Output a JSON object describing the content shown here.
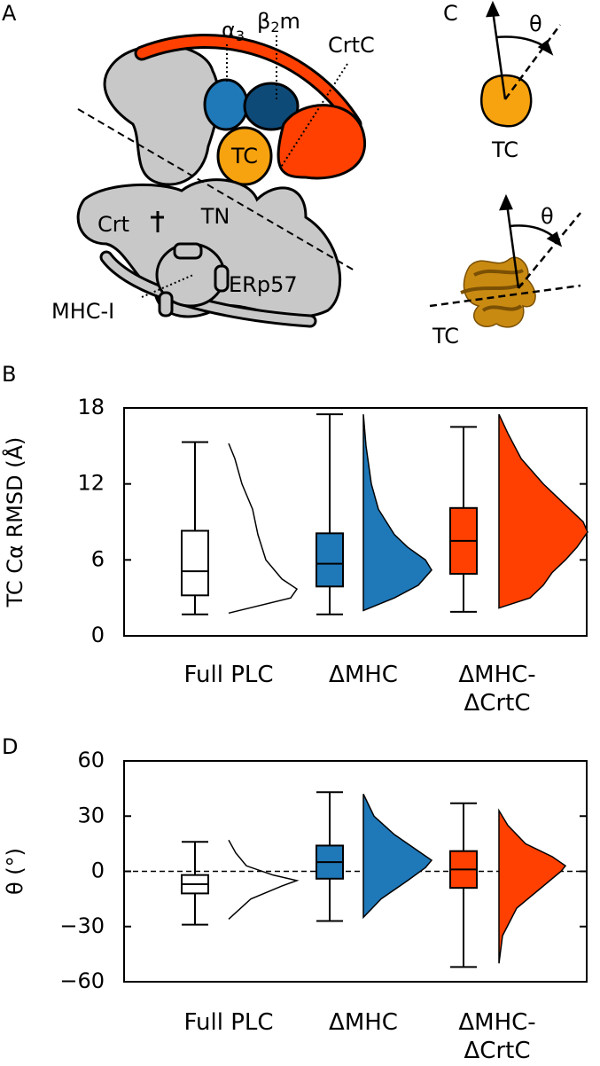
{
  "panel_labels": [
    "A",
    "B",
    "C",
    "D"
  ],
  "diagram_a": {
    "alpha3": {
      "text": "α",
      "sub": "3"
    },
    "b2m": {
      "text": "β",
      "sub": "2",
      "rest": "m"
    },
    "crtc": "CrtC",
    "tc": "TC",
    "crt": "Crt",
    "tn": "TN",
    "erp57": "ERp57",
    "mhc": "MHC-I"
  },
  "diagram_c": {
    "theta_top": "θ",
    "tc_top": "TC",
    "theta_bottom": "θ",
    "tc_bottom": "TC"
  },
  "chart_data": [
    {
      "type": "box",
      "ylabel": "TC Cα RMSD (Å)",
      "categories": [
        "Full PLC",
        "ΔMHC",
        "ΔMHC-ΔCrtC"
      ],
      "ylim": [
        0,
        18
      ],
      "yticks": [
        0,
        6,
        12,
        18
      ],
      "boxes": [
        {
          "color": "#ffffff",
          "density_filled": false,
          "whisker_low": 1.7,
          "q1": 3.2,
          "median": 5.1,
          "q3": 8.3,
          "whisker_high": 15.3,
          "density_y": [
            1.8,
            3.0,
            3.7,
            4.5,
            6,
            8,
            10,
            12,
            14,
            15.2
          ],
          "density": [
            0,
            0.7,
            0.77,
            0.6,
            0.42,
            0.33,
            0.27,
            0.15,
            0.07,
            0
          ]
        },
        {
          "color": "#1f78b8",
          "density_filled": true,
          "whisker_low": 1.7,
          "q1": 3.9,
          "median": 5.7,
          "q3": 8.1,
          "whisker_high": 17.5,
          "density_y": [
            2,
            3,
            4,
            5.2,
            6,
            7,
            8,
            10,
            12,
            15,
            17.5
          ],
          "density": [
            0,
            0.35,
            0.62,
            0.77,
            0.7,
            0.5,
            0.35,
            0.17,
            0.09,
            0.03,
            0
          ]
        },
        {
          "color": "#ff4000",
          "density_filled": true,
          "whisker_low": 1.9,
          "q1": 4.9,
          "median": 7.5,
          "q3": 10.1,
          "whisker_high": 16.5,
          "density_y": [
            2.2,
            3,
            4,
            5,
            6,
            7,
            8.2,
            9,
            10,
            12,
            14,
            16,
            17.5
          ],
          "density": [
            0,
            0.35,
            0.5,
            0.6,
            0.75,
            0.88,
            1,
            0.95,
            0.8,
            0.5,
            0.25,
            0.1,
            0
          ]
        }
      ]
    },
    {
      "type": "box",
      "ylabel": "θ (°)",
      "categories": [
        "Full PLC",
        "ΔMHC",
        "ΔMHC-ΔCrtC"
      ],
      "ylim": [
        -60,
        60
      ],
      "yticks": [
        {
          "value": -60,
          "label": "−60"
        },
        {
          "value": -30,
          "label": "−30"
        },
        0,
        30,
        60
      ],
      "hline": 0,
      "boxes": [
        {
          "color": "#ffffff",
          "density_filled": false,
          "whisker_low": -29,
          "q1": -12,
          "median": -7,
          "q3": -2,
          "whisker_high": 16,
          "density_y": [
            -26,
            -15,
            -8,
            -5,
            -2,
            3,
            10,
            17
          ],
          "density": [
            0,
            0.25,
            0.6,
            0.77,
            0.5,
            0.2,
            0.08,
            0
          ]
        },
        {
          "color": "#1f78b8",
          "density_filled": true,
          "whisker_low": -27,
          "q1": -4,
          "median": 5,
          "q3": 14,
          "whisker_high": 43,
          "density_y": [
            -25,
            -15,
            -5,
            2,
            6,
            10,
            20,
            30,
            42
          ],
          "density": [
            0,
            0.2,
            0.5,
            0.7,
            0.77,
            0.65,
            0.35,
            0.12,
            0
          ]
        },
        {
          "color": "#ff4000",
          "density_filled": true,
          "whisker_low": -52,
          "q1": -9,
          "median": 1,
          "q3": 11,
          "whisker_high": 37,
          "density_y": [
            -50,
            -35,
            -20,
            -10,
            0,
            3,
            8,
            15,
            25,
            33
          ],
          "density": [
            0,
            0.04,
            0.2,
            0.45,
            0.7,
            0.75,
            0.6,
            0.3,
            0.1,
            0
          ]
        }
      ]
    }
  ]
}
